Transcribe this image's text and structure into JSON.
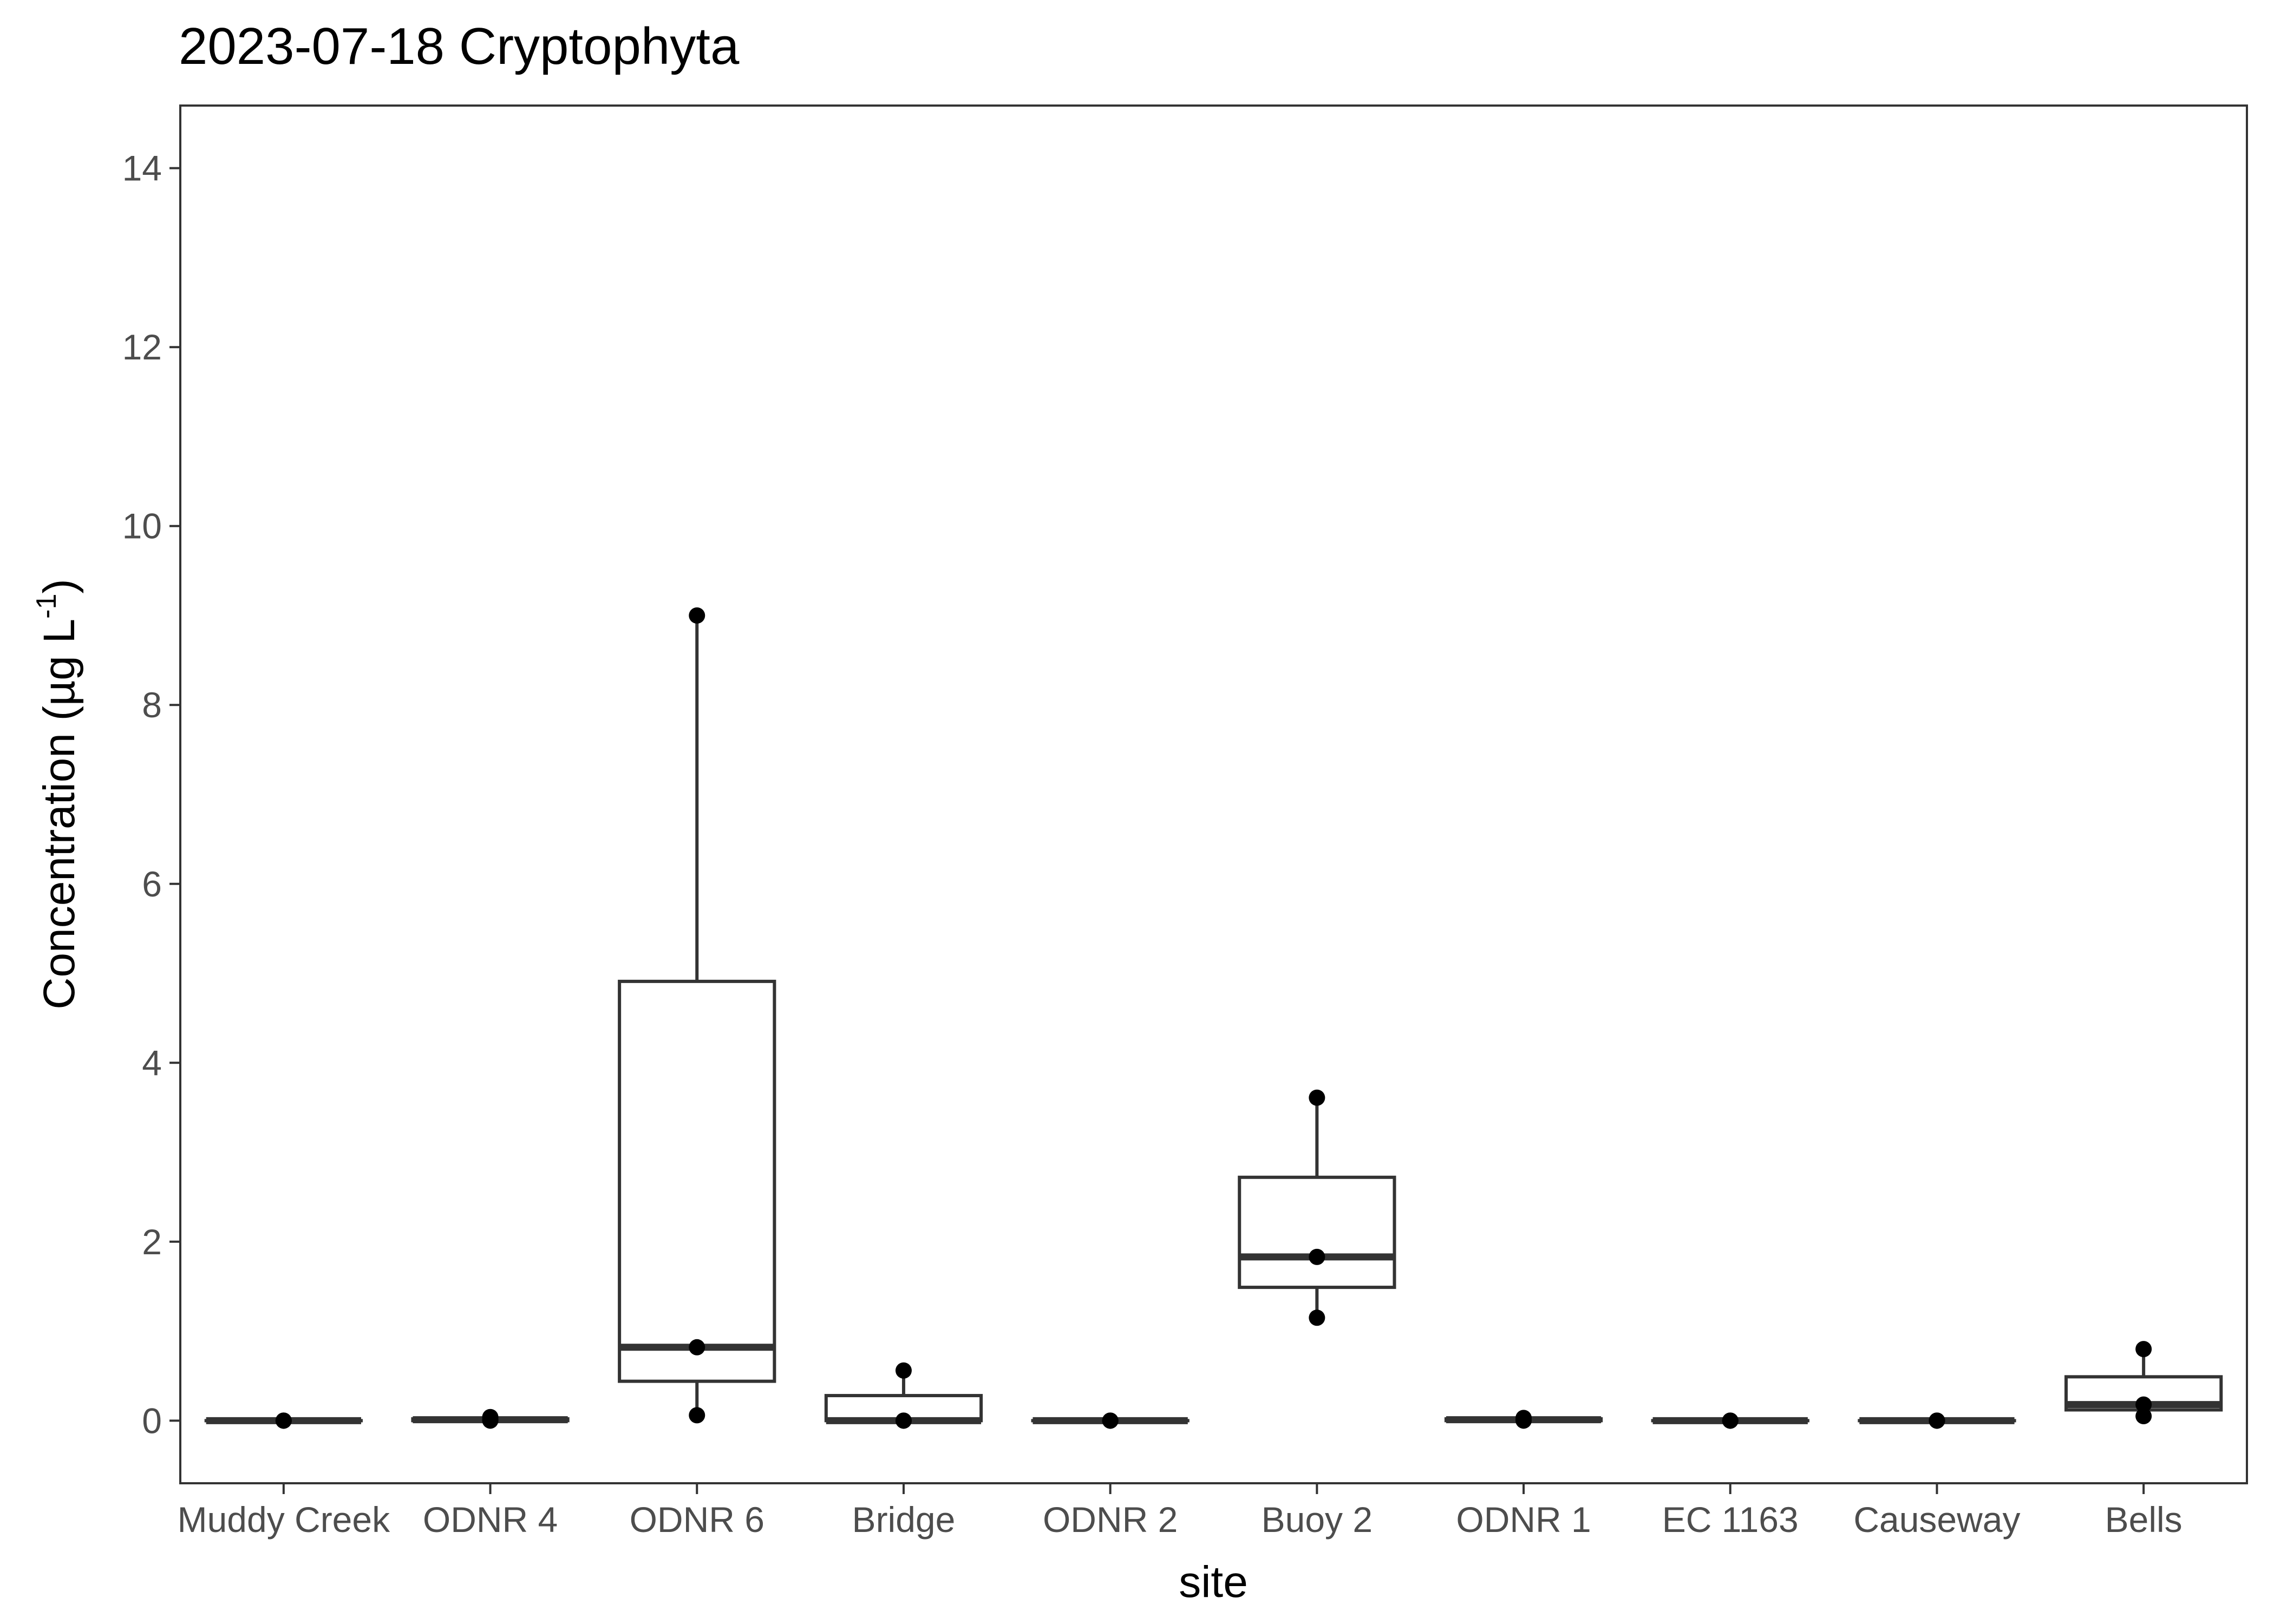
{
  "chart_data": {
    "type": "box",
    "title": "2023-07-18 Cryptophyta",
    "xlabel": "site",
    "ylabel": "Concentration (µg L",
    "ylabel_superscript": "-1",
    "ylabel_suffix": ")",
    "ylim": [
      -0.7,
      14.7
    ],
    "yticks": [
      0,
      2,
      4,
      6,
      8,
      10,
      12,
      14
    ],
    "grid": false,
    "legend": "none",
    "categories": [
      "Muddy Creek",
      "ODNR 4",
      "ODNR 6",
      "Bridge",
      "ODNR 2",
      "Buoy 2",
      "ODNR 1",
      "EC 1163",
      "Causeway",
      "Bells"
    ],
    "boxes": [
      {
        "site": "Muddy Creek",
        "min": 0,
        "q1": 0,
        "median": 0,
        "q3": 0,
        "max": 0,
        "points": [
          0,
          0,
          0
        ]
      },
      {
        "site": "ODNR 4",
        "min": 0,
        "q1": 0,
        "median": 0.01,
        "q3": 0.02,
        "max": 0.04,
        "points": [
          0,
          0.01,
          0.04
        ]
      },
      {
        "site": "ODNR 6",
        "min": 0.06,
        "q1": 0.44,
        "median": 0.82,
        "q3": 4.91,
        "max": 9.0,
        "points": [
          0.06,
          0.82,
          9.0
        ]
      },
      {
        "site": "Bridge",
        "min": 0,
        "q1": 0,
        "median": 0,
        "q3": 0.28,
        "max": 0.56,
        "points": [
          0,
          0,
          0.56
        ]
      },
      {
        "site": "ODNR 2",
        "min": 0,
        "q1": 0,
        "median": 0,
        "q3": 0,
        "max": 0,
        "points": [
          0,
          0,
          0
        ]
      },
      {
        "site": "Buoy 2",
        "min": 1.15,
        "q1": 1.49,
        "median": 1.83,
        "q3": 2.72,
        "max": 3.61,
        "points": [
          1.15,
          1.83,
          3.61
        ]
      },
      {
        "site": "ODNR 1",
        "min": 0,
        "q1": 0,
        "median": 0.01,
        "q3": 0.02,
        "max": 0.03,
        "points": [
          0,
          0.01,
          0.03
        ]
      },
      {
        "site": "EC 1163",
        "min": 0,
        "q1": 0,
        "median": 0,
        "q3": 0,
        "max": 0,
        "points": [
          0,
          0,
          0
        ]
      },
      {
        "site": "Causeway",
        "min": 0,
        "q1": 0,
        "median": 0,
        "q3": 0,
        "max": 0,
        "points": [
          0,
          0,
          0
        ]
      },
      {
        "site": "Bells",
        "min": 0.05,
        "q1": 0.12,
        "median": 0.18,
        "q3": 0.49,
        "max": 0.8,
        "points": [
          0.05,
          0.18,
          0.8
        ]
      }
    ],
    "colors": {
      "box_outline": "#333333",
      "box_fill": "#ffffff",
      "point": "#000000",
      "panel_border": "#333333",
      "tick_label": "#4d4d4d",
      "text": "#000000"
    }
  }
}
